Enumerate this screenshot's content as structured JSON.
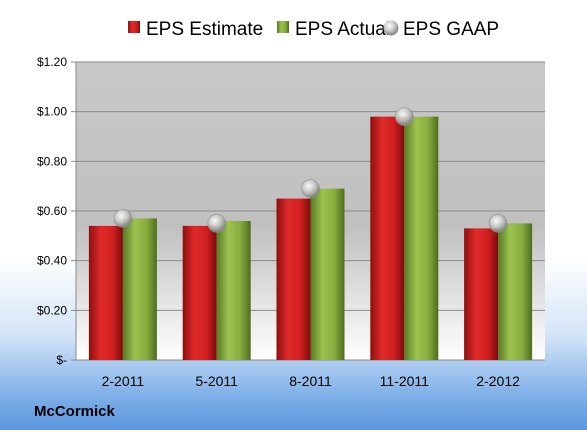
{
  "company": "McCormick",
  "colors": {
    "estimate": "#cc1f1f",
    "actual": "#7fa33a",
    "gaap": "#b8b8b8"
  },
  "chart_data": {
    "type": "bar",
    "categories": [
      "2-2011",
      "5-2011",
      "8-2011",
      "11-2011",
      "2-2012"
    ],
    "series": [
      {
        "name": "EPS Estimate",
        "type": "bar",
        "values": [
          0.54,
          0.54,
          0.65,
          0.98,
          0.53
        ]
      },
      {
        "name": "EPS Actual",
        "type": "bar",
        "values": [
          0.57,
          0.56,
          0.69,
          0.98,
          0.55
        ]
      },
      {
        "name": "EPS GAAP",
        "type": "scatter",
        "values": [
          0.57,
          0.55,
          0.69,
          0.98,
          0.55
        ]
      }
    ],
    "ylim": [
      0,
      1.2
    ],
    "yticks": [
      0,
      0.2,
      0.4,
      0.6,
      0.8,
      1.0,
      1.2
    ],
    "ytick_labels": [
      "$-",
      "$0.20",
      "$0.40",
      "$0.60",
      "$0.80",
      "$1.00",
      "$1.20"
    ],
    "grid": true,
    "legend": "top"
  }
}
